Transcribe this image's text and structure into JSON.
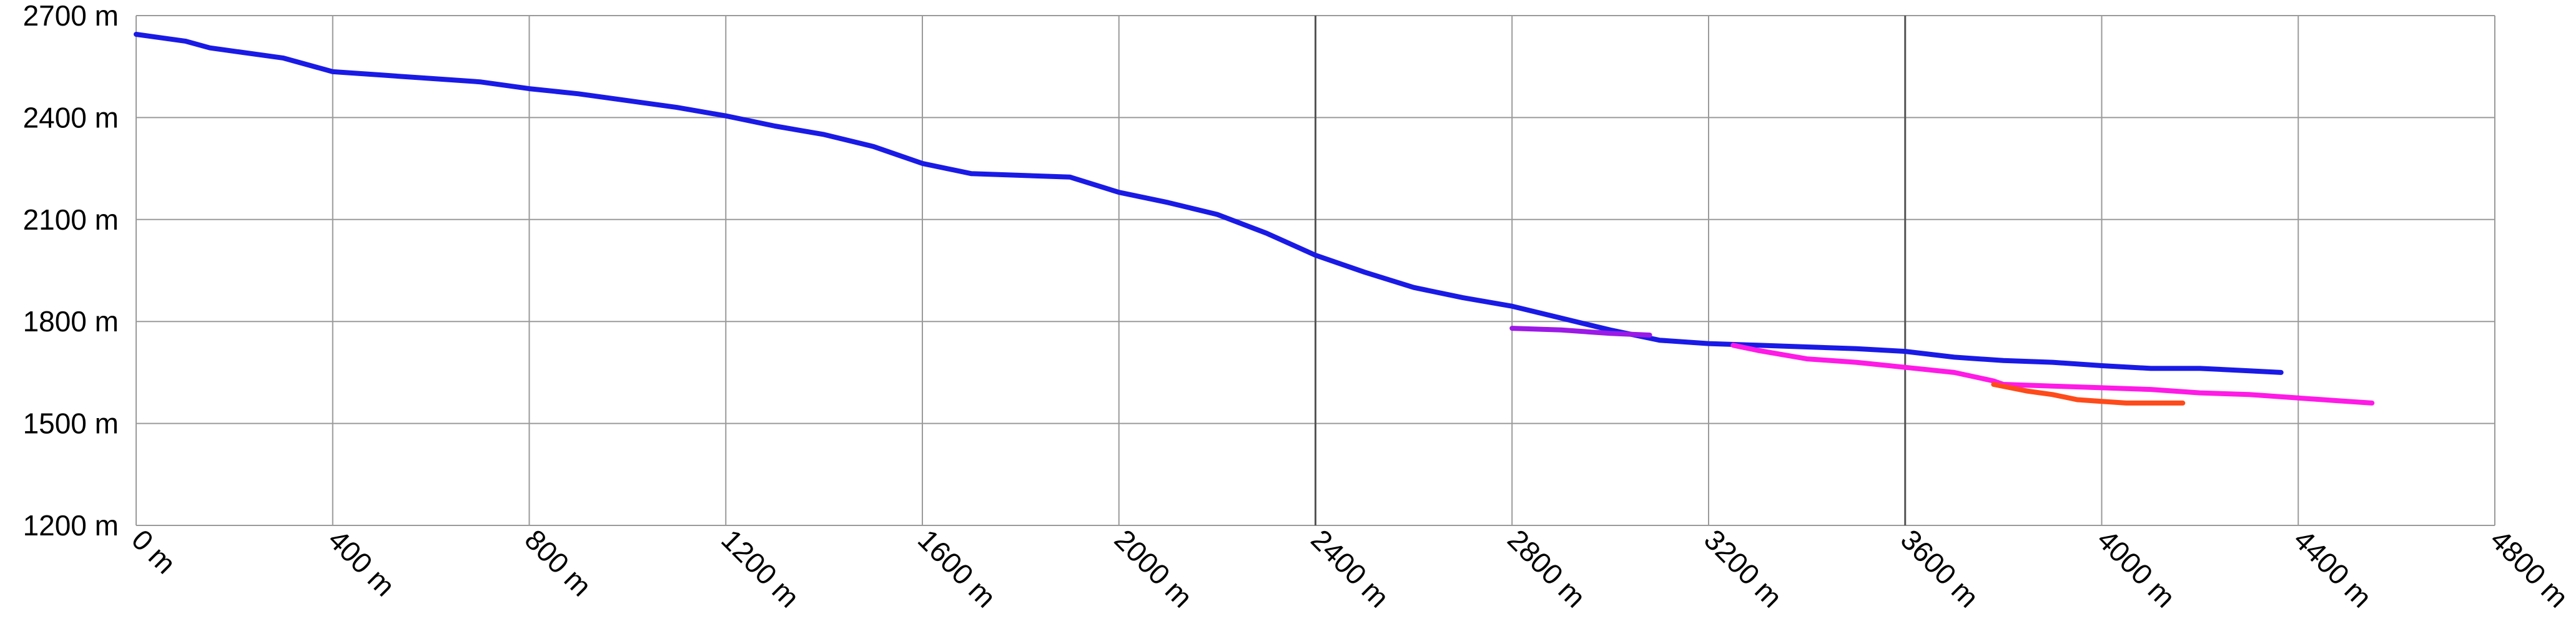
{
  "chart_data": {
    "type": "line",
    "title": "",
    "xlabel": "",
    "ylabel": "",
    "xlim": [
      0,
      4800
    ],
    "ylim": [
      1200,
      2700
    ],
    "x_ticks": [
      0,
      400,
      800,
      1200,
      1600,
      2000,
      2400,
      2800,
      3200,
      3600,
      4000,
      4400,
      4800
    ],
    "x_tick_labels": [
      "0 m",
      "400 m",
      "800 m",
      "1200 m",
      "1600 m",
      "2000 m",
      "2400 m",
      "2800 m",
      "3200 m",
      "3600 m",
      "4000 m",
      "4400 m",
      "4800 m"
    ],
    "y_ticks": [
      1200,
      1500,
      1800,
      2100,
      2400,
      2700
    ],
    "y_tick_labels": [
      "1200 m",
      "1500 m",
      "1800 m",
      "2100 m",
      "2400 m",
      "2700 m"
    ],
    "grid": true,
    "emphasized_vertical_gridlines": [
      2400,
      3600
    ],
    "series": [
      {
        "color": "#1a1ae6",
        "points": [
          [
            0,
            2645
          ],
          [
            100,
            2625
          ],
          [
            150,
            2605
          ],
          [
            200,
            2595
          ],
          [
            300,
            2575
          ],
          [
            400,
            2535
          ],
          [
            500,
            2525
          ],
          [
            600,
            2515
          ],
          [
            700,
            2505
          ],
          [
            800,
            2485
          ],
          [
            900,
            2470
          ],
          [
            1000,
            2450
          ],
          [
            1100,
            2430
          ],
          [
            1200,
            2405
          ],
          [
            1300,
            2375
          ],
          [
            1400,
            2350
          ],
          [
            1500,
            2315
          ],
          [
            1600,
            2265
          ],
          [
            1700,
            2235
          ],
          [
            1800,
            2230
          ],
          [
            1900,
            2225
          ],
          [
            2000,
            2180
          ],
          [
            2100,
            2150
          ],
          [
            2200,
            2115
          ],
          [
            2300,
            2060
          ],
          [
            2400,
            1995
          ],
          [
            2500,
            1945
          ],
          [
            2600,
            1900
          ],
          [
            2700,
            1870
          ],
          [
            2800,
            1845
          ],
          [
            2900,
            1810
          ],
          [
            3000,
            1775
          ],
          [
            3100,
            1745
          ],
          [
            3200,
            1735
          ],
          [
            3300,
            1730
          ],
          [
            3400,
            1725
          ],
          [
            3500,
            1720
          ],
          [
            3600,
            1712
          ],
          [
            3700,
            1695
          ],
          [
            3800,
            1685
          ],
          [
            3900,
            1680
          ],
          [
            4000,
            1670
          ],
          [
            4100,
            1662
          ],
          [
            4200,
            1662
          ],
          [
            4300,
            1655
          ],
          [
            4365,
            1650
          ]
        ]
      },
      {
        "color": "#9b1ae6",
        "points": [
          [
            2800,
            1780
          ],
          [
            2900,
            1775
          ],
          [
            3000,
            1765
          ],
          [
            3080,
            1760
          ]
        ]
      },
      {
        "color": "#ff1ae6",
        "points": [
          [
            3250,
            1730
          ],
          [
            3300,
            1715
          ],
          [
            3400,
            1690
          ],
          [
            3500,
            1680
          ],
          [
            3600,
            1665
          ],
          [
            3700,
            1650
          ],
          [
            3780,
            1625
          ],
          [
            3800,
            1615
          ],
          [
            3900,
            1610
          ],
          [
            4000,
            1605
          ],
          [
            4100,
            1600
          ],
          [
            4200,
            1590
          ],
          [
            4300,
            1585
          ],
          [
            4400,
            1575
          ],
          [
            4500,
            1565
          ],
          [
            4550,
            1560
          ]
        ]
      },
      {
        "color": "#ff4a1a",
        "points": [
          [
            3780,
            1615
          ],
          [
            3850,
            1595
          ],
          [
            3900,
            1585
          ],
          [
            3950,
            1570
          ],
          [
            4000,
            1565
          ],
          [
            4050,
            1560
          ],
          [
            4100,
            1560
          ],
          [
            4165,
            1560
          ]
        ]
      }
    ]
  }
}
